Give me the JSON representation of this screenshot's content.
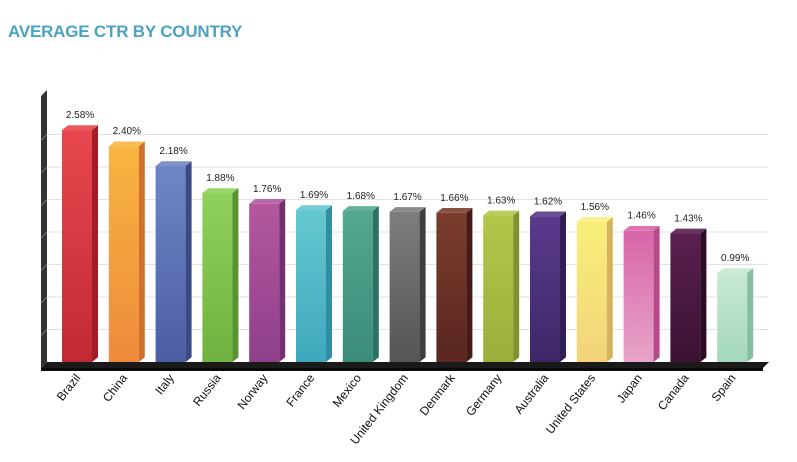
{
  "chart_data": {
    "type": "bar",
    "title": "AVERAGE CTR BY COUNTRY",
    "xlabel": "",
    "ylabel": "",
    "ylim": [
      0,
      2.8
    ],
    "grid": true,
    "categories": [
      "Brazil",
      "China",
      "Italy",
      "Russia",
      "Norway",
      "France",
      "Mexico",
      "United Kingdom",
      "Denmark",
      "Germany",
      "Australia",
      "United States",
      "Japan",
      "Canada",
      "Spain"
    ],
    "values": [
      2.58,
      2.4,
      2.18,
      1.88,
      1.76,
      1.69,
      1.68,
      1.67,
      1.66,
      1.63,
      1.62,
      1.56,
      1.46,
      1.43,
      0.99
    ],
    "value_labels": [
      "2.58%",
      "2.40%",
      "2.18%",
      "1.88%",
      "1.76%",
      "1.69%",
      "1.68%",
      "1.67%",
      "1.66%",
      "1.63%",
      "1.62%",
      "1.56%",
      "1.46%",
      "1.43%",
      "0.99%"
    ],
    "colors": [
      [
        "#e8474f",
        "#c12a33",
        "#a31d27"
      ],
      [
        "#f8b540",
        "#ee8a3c",
        "#d1702a"
      ],
      [
        "#6f86c4",
        "#4b5da3",
        "#3a4a86"
      ],
      [
        "#8fd15a",
        "#6fb23f",
        "#579330"
      ],
      [
        "#b4579f",
        "#8f3f8a",
        "#742f70"
      ],
      [
        "#64c8d0",
        "#3fa8bd",
        "#2f8ea2"
      ],
      [
        "#52a890",
        "#3a8c78",
        "#2c7262"
      ],
      [
        "#7d7d7d",
        "#555555",
        "#3e3e3e"
      ],
      [
        "#7a3d2c",
        "#5a2620",
        "#451b17"
      ],
      [
        "#b3c64a",
        "#9aae3b",
        "#7f922c"
      ],
      [
        "#5a3a8c",
        "#3e2868",
        "#301f52"
      ],
      [
        "#f8ef7a",
        "#f4d37a",
        "#d6b45c"
      ],
      [
        "#d865a8",
        "#e7a4c8",
        "#b54a89"
      ],
      [
        "#5a2050",
        "#3a1232",
        "#2c0d26"
      ],
      [
        "#c8e8d4",
        "#a4d8bc",
        "#86bea2"
      ]
    ],
    "title_color": "#4aa3c4"
  }
}
